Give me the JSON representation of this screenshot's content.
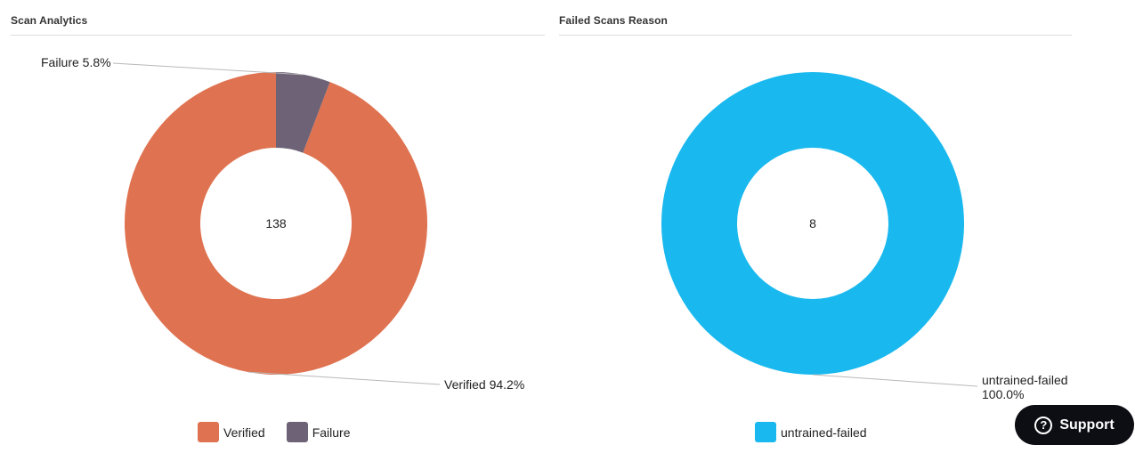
{
  "chart_data": [
    {
      "type": "pie",
      "title": "Scan Analytics",
      "center_label": "138",
      "categories": [
        "Verified",
        "Failure"
      ],
      "values": [
        94.2,
        5.8
      ],
      "data_labels": [
        "Verified 94.2%",
        "Failure 5.8%"
      ],
      "colors": [
        "#df7250",
        "#6e6376"
      ],
      "legend": [
        "Verified",
        "Failure"
      ],
      "legend_position": "bottom"
    },
    {
      "type": "pie",
      "title": "Failed Scans Reason",
      "center_label": "8",
      "categories": [
        "untrained-failed"
      ],
      "values": [
        100.0
      ],
      "data_labels": [
        "untrained-failed 100.0%"
      ],
      "colors": [
        "#19b8ee"
      ],
      "legend": [
        "untrained-failed"
      ],
      "legend_position": "bottom"
    }
  ],
  "support": {
    "label": "Support",
    "icon": "question-circle-icon"
  }
}
